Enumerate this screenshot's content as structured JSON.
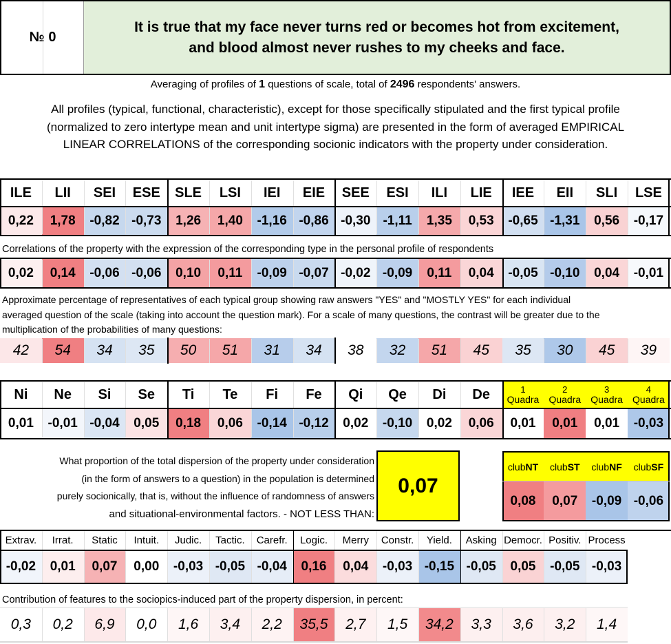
{
  "header": {
    "number_label": "№ 0",
    "statement_line1": "It is true that my face never turns red or becomes hot from excitement,",
    "statement_line2": "and blood almost never rushes to my cheeks and face."
  },
  "averaging": {
    "prefix": "Averaging of profiles of ",
    "questions": "1",
    "middle": " questions of scale, total of ",
    "respondents": "2496",
    "suffix": " respondents' answers."
  },
  "intro": {
    "line1": "All profiles (typical, functional, characteristic), except for those specifically stipulated and the first typical profile",
    "line2": "(normalized to zero intertype mean and unit intertype sigma) are presented in the form of averaged EMPIRICAL",
    "line3": "LINEAR CORRELATIONS of the corresponding socionic indicators with the property under consideration."
  },
  "types": {
    "headers": [
      "ILE",
      "LII",
      "SEI",
      "ESE",
      "SLE",
      "LSI",
      "IEI",
      "EIE",
      "SEE",
      "ESI",
      "ILI",
      "LIE",
      "IEE",
      "EII",
      "SLI",
      "LSE"
    ],
    "profile": [
      "0,22",
      "1,78",
      "-0,82",
      "-0,73",
      "1,26",
      "1,40",
      "-1,16",
      "-0,86",
      "-0,30",
      "-1,11",
      "1,35",
      "0,53",
      "-0,65",
      "-1,31",
      "0,56",
      "-0,17"
    ],
    "profile_colors": [
      "#fce9ea",
      "#f07f82",
      "#c6d8ee",
      "#cbdbef",
      "#f6b2b4",
      "#f5a7a9",
      "#b2cbea",
      "#c2d5ee",
      "#eef3fa",
      "#b9cfeb",
      "#f5a9ab",
      "#fad5d6",
      "#d1dff1",
      "#a9c5e8",
      "#f9d2d3",
      "#f5f8fc"
    ],
    "correlation_note": "Correlations of the property with the expression of the corresponding type in the personal profile of respondents",
    "correlations": [
      "0,02",
      "0,14",
      "-0,06",
      "-0,06",
      "0,10",
      "0,11",
      "-0,09",
      "-0,07",
      "-0,02",
      "-0,09",
      "0,11",
      "0,04",
      "-0,05",
      "-0,10",
      "0,04",
      "-0,01"
    ],
    "correlation_colors": [
      "#fdf0f0",
      "#f07f82",
      "#d3e0f1",
      "#d3e0f1",
      "#f4a3a5",
      "#f49b9e",
      "#bcd1ec",
      "#c9daef",
      "#eff4fa",
      "#bcd1ec",
      "#f49b9e",
      "#fad6d7",
      "#d9e5f3",
      "#b4cbea",
      "#fad6d7",
      "#f7f9fc"
    ],
    "percent_note_line1": "Approximate percentage of representatives of each typical group showing raw answers \"YES\" and \"MOSTLY YES\" for each individual",
    "percent_note_line2": "averaged question of the scale (taking into account the question mark). For a scale of many questions, the contrast will be greater due to the",
    "percent_note_line3": "multiplication of the probabilities of many questions:",
    "percentages": [
      "42",
      "54",
      "34",
      "35",
      "50",
      "51",
      "31",
      "34",
      "38",
      "32",
      "51",
      "45",
      "35",
      "30",
      "45",
      "39"
    ],
    "percentage_colors": [
      "#fce7e8",
      "#f07f82",
      "#d5e2f2",
      "#dde7f4",
      "#f6aeb0",
      "#f5a7a9",
      "#b7cdeb",
      "#d5e2f2",
      "#ffffff",
      "#c3d6ee",
      "#f5a7a9",
      "#fad2d3",
      "#dde7f4",
      "#aec8e9",
      "#fad2d3",
      "#fef5f5"
    ]
  },
  "functions": {
    "headers": [
      "Ni",
      "Ne",
      "Si",
      "Se",
      "Ti",
      "Te",
      "Fi",
      "Fe",
      "Qi",
      "Qe",
      "Di",
      "De"
    ],
    "values": [
      "0,01",
      "-0,01",
      "-0,04",
      "0,05",
      "0,18",
      "0,06",
      "-0,14",
      "-0,12",
      "0,02",
      "-0,10",
      "0,02",
      "0,06"
    ],
    "colors": [
      "#ffffff",
      "#f3f6fb",
      "#dbe6f4",
      "#fbe3e4",
      "#f07f82",
      "#fad6d7",
      "#a9c5e8",
      "#b8cfeb",
      "#ffffff",
      "#c6d8ee",
      "#ffffff",
      "#fad6d7"
    ]
  },
  "quadras": {
    "numbers": [
      "1",
      "2",
      "3",
      "4"
    ],
    "label": "Quadra",
    "values": [
      "0,01",
      "0,01",
      "0,01",
      "-0,03"
    ],
    "colors": [
      "#ffffff",
      "#f07f82",
      "#ffffff",
      "#aec8e9"
    ],
    "header_color": "#ffff00"
  },
  "dispersion": {
    "line1": "What proportion of the total dispersion of the property under consideration",
    "line2": "(in the form of answers to a question) in the population is determined",
    "line3": "purely socionically, that is, without the influence of randomness of answers",
    "line4": "and situational-environmental factors. - NOT LESS THAN:",
    "value": "0,07",
    "value_bg": "#ffff00"
  },
  "clubs": {
    "prefix": "club",
    "codes": [
      "NT",
      "ST",
      "NF",
      "SF"
    ],
    "values": [
      "0,08",
      "0,07",
      "-0,09",
      "-0,06"
    ],
    "colors": [
      "#f07f82",
      "#f49b9e",
      "#a9c5e8",
      "#bfd3ed"
    ]
  },
  "features": {
    "headers": [
      "Extrav.",
      "Irrat.",
      "Static",
      "Intuit.",
      "Judic.",
      "Tactic.",
      "Carefr.",
      "Logic.",
      "Merry",
      "Constr.",
      "Yield.",
      "Asking",
      "Democr.",
      "Positiv.",
      "Process"
    ],
    "values": [
      "-0,02",
      "0,01",
      "0,07",
      "0,00",
      "-0,03",
      "-0,05",
      "-0,04",
      "0,16",
      "0,04",
      "-0,03",
      "-0,15",
      "-0,05",
      "0,05",
      "-0,05",
      "-0,03"
    ],
    "value_colors": [
      "#f1f5fb",
      "#fdeeee",
      "#f6b2b4",
      "#ffffff",
      "#ecf1f9",
      "#dfe8f4",
      "#e6edf7",
      "#f07f82",
      "#fbdcdd",
      "#ecf1f9",
      "#a9c5e8",
      "#dfe8f4",
      "#fad3d4",
      "#dfe8f4",
      "#ecf1f9"
    ],
    "contribution_note": "Contribution of features to the sociopics-induced part of the property dispersion, in percent:",
    "contributions": [
      "0,3",
      "0,2",
      "6,9",
      "0,0",
      "1,6",
      "3,4",
      "2,2",
      "35,5",
      "2,7",
      "1,5",
      "34,2",
      "3,3",
      "3,6",
      "3,2",
      "1,4"
    ],
    "contribution_colors": [
      "#ffffff",
      "#ffffff",
      "#fde9ea",
      "#ffffff",
      "#fef6f6",
      "#fdf0f0",
      "#fef3f3",
      "#f07f82",
      "#fef1f1",
      "#fef7f7",
      "#f28a8c",
      "#fdf0f0",
      "#fdefef",
      "#fdf0f0",
      "#fef7f7"
    ]
  },
  "colors": {
    "header_green": "#e2efda",
    "highlight_yellow": "#ffff00"
  }
}
